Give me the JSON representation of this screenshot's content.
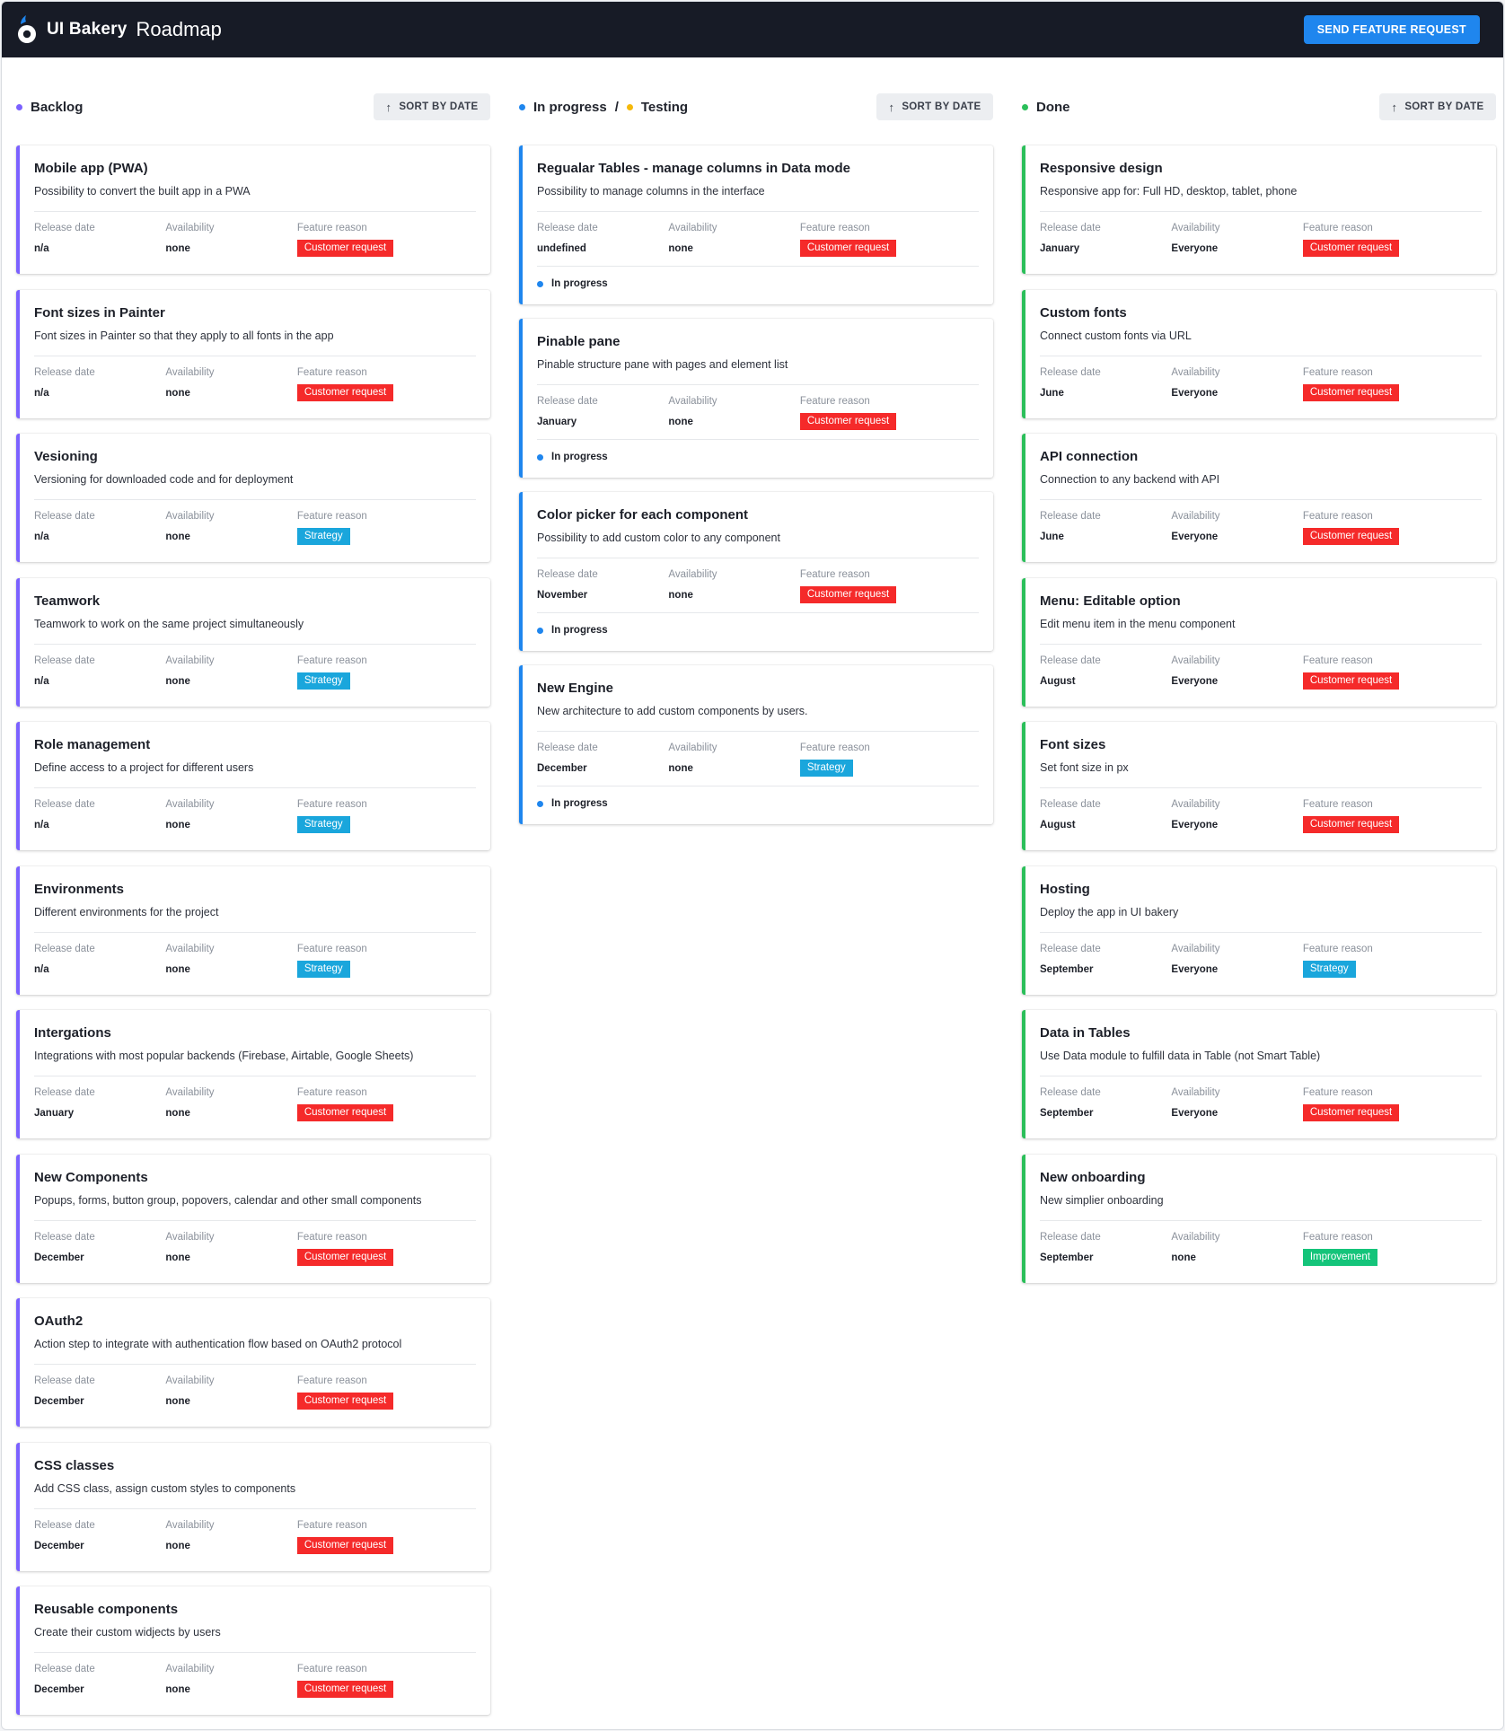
{
  "header": {
    "logo_text": "UI Bakery",
    "title": "Roadmap",
    "send_button": "SEND FEATURE REQUEST",
    "colors": {
      "bar": "#171b26",
      "accent": "#1f86ee"
    }
  },
  "labels": {
    "release_date": "Release date",
    "availability": "Availability",
    "feature_reason": "Feature reason",
    "sort_by_date": "SORT BY DATE"
  },
  "columns": {
    "backlog": {
      "title": "Backlog",
      "color": "#7b61ff",
      "cards": [
        {
          "title": "Mobile app (PWA)",
          "desc": "Possibility to convert the built app in a PWA",
          "release": "n/a",
          "availability": "none",
          "reason": "Customer request"
        },
        {
          "title": "Font sizes in Painter",
          "desc": "Font sizes in Painter so that they apply to all fonts in the app",
          "release": "n/a",
          "availability": "none",
          "reason": "Customer request"
        },
        {
          "title": "Vesioning",
          "desc": "Versioning for downloaded code and for deployment",
          "release": "n/a",
          "availability": "none",
          "reason": "Strategy"
        },
        {
          "title": "Teamwork",
          "desc": "Teamwork to work on the same project simultaneously",
          "release": "n/a",
          "availability": "none",
          "reason": "Strategy"
        },
        {
          "title": "Role management",
          "desc": "Define access to a project for different users",
          "release": "n/a",
          "availability": "none",
          "reason": "Strategy"
        },
        {
          "title": "Environments",
          "desc": "Different environments for the project",
          "release": "n/a",
          "availability": "none",
          "reason": "Strategy"
        },
        {
          "title": "Intergations",
          "desc": "Integrations with most popular backends (Firebase, Airtable, Google Sheets)",
          "release": "January",
          "availability": "none",
          "reason": "Customer request"
        },
        {
          "title": "New Components",
          "desc": "Popups, forms, button group, popovers, calendar and other small components",
          "release": "December",
          "availability": "none",
          "reason": "Customer request"
        },
        {
          "title": "OAuth2",
          "desc": "Action step to integrate with authentication flow based on OAuth2 protocol",
          "release": "December",
          "availability": "none",
          "reason": "Customer request"
        },
        {
          "title": "CSS classes",
          "desc": "Add CSS class, assign custom styles to components",
          "release": "December",
          "availability": "none",
          "reason": "Customer request"
        },
        {
          "title": "Reusable components",
          "desc": "Create their custom widjects by users",
          "release": "December",
          "availability": "none",
          "reason": "Customer request"
        }
      ]
    },
    "progress": {
      "title": "In progress",
      "title_2": "Testing",
      "color": "#1f86ee",
      "color_2": "#f5b90a",
      "cards": [
        {
          "title": "Regualar Tables - manage columns in Data mode",
          "desc": "Possibility to manage columns in the interface",
          "release": "undefined",
          "availability": "none",
          "reason": "Customer request",
          "status": "In progress"
        },
        {
          "title": "Pinable pane",
          "desc": "Pinable structure pane with pages and element list",
          "release": "January",
          "availability": "none",
          "reason": "Customer request",
          "status": "In progress"
        },
        {
          "title": "Color picker for each component",
          "desc": "Possibility to add custom color to any component",
          "release": "November",
          "availability": "none",
          "reason": "Customer request",
          "status": "In progress"
        },
        {
          "title": "New Engine",
          "desc": "New architecture to add custom components by users.",
          "release": "December",
          "availability": "none",
          "reason": "Strategy",
          "status": "In progress"
        }
      ]
    },
    "done": {
      "title": "Done",
      "color": "#2bbf5a",
      "cards": [
        {
          "title": "Responsive design",
          "desc": "Responsive app for: Full HD, desktop, tablet, phone",
          "release": "January",
          "availability": "Everyone",
          "reason": "Customer request"
        },
        {
          "title": "Custom fonts",
          "desc": "Connect custom fonts via URL",
          "release": "June",
          "availability": "Everyone",
          "reason": "Customer request"
        },
        {
          "title": "API connection",
          "desc": "Connection to any backend with API",
          "release": "June",
          "availability": "Everyone",
          "reason": "Customer request"
        },
        {
          "title": "Menu: Editable option",
          "desc": "Edit menu item in the menu component",
          "release": "August",
          "availability": "Everyone",
          "reason": "Customer request"
        },
        {
          "title": "Font sizes",
          "desc": "Set font size in px",
          "release": "August",
          "availability": "Everyone",
          "reason": "Customer request"
        },
        {
          "title": "Hosting",
          "desc": "Deploy the app in UI bakery",
          "release": "September",
          "availability": "Everyone",
          "reason": "Strategy"
        },
        {
          "title": "Data in Tables",
          "desc": "Use Data module to fulfill data in Table (not Smart Table)",
          "release": "September",
          "availability": "Everyone",
          "reason": "Customer request"
        },
        {
          "title": "New onboarding",
          "desc": "New simplier onboarding",
          "release": "September",
          "availability": "none",
          "reason": "Improvement"
        }
      ]
    }
  },
  "reason_colors": {
    "Customer request": "#f52a2a",
    "Strategy": "#1aa6dc",
    "Improvement": "#14c47a"
  }
}
